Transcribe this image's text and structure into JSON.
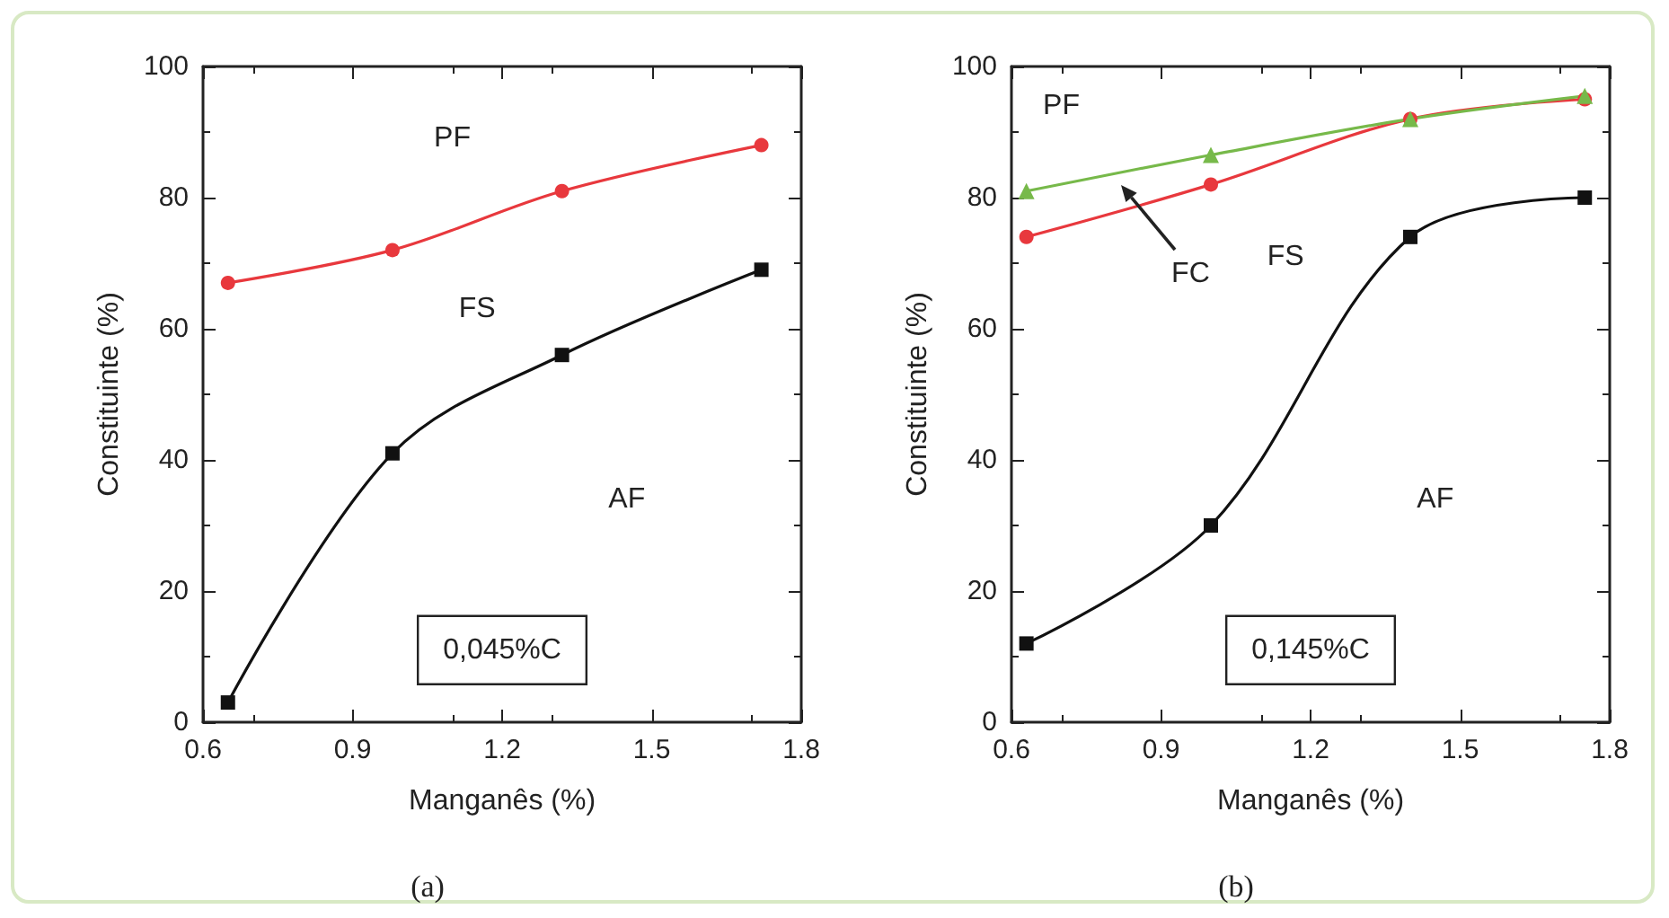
{
  "chart_data": [
    {
      "type": "line",
      "title": "(a)",
      "xlabel": "Manganês (%)",
      "ylabel": "Constituinte (%)",
      "xlim": [
        0.6,
        1.8
      ],
      "xticks": [
        0.6,
        0.9,
        1.2,
        1.5,
        1.8
      ],
      "ylim": [
        0,
        100
      ],
      "yticks": [
        0,
        20,
        40,
        60,
        80,
        100
      ],
      "x": [
        0.65,
        0.98,
        1.32,
        1.72
      ],
      "series": [
        {
          "color": "#111111",
          "marker": "square",
          "values": [
            3,
            41,
            56,
            69
          ]
        },
        {
          "color": "#e8383d",
          "marker": "circle",
          "values": [
            67,
            72,
            81,
            88
          ]
        }
      ],
      "annotations": [
        "PF",
        "FS",
        "AF",
        "0,045%C"
      ]
    },
    {
      "type": "line",
      "title": "(b)",
      "xlabel": "Manganês (%)",
      "ylabel": "Constituinte (%)",
      "xlim": [
        0.6,
        1.8
      ],
      "xticks": [
        0.6,
        0.9,
        1.2,
        1.5,
        1.8
      ],
      "ylim": [
        0,
        100
      ],
      "yticks": [
        0,
        20,
        40,
        60,
        80,
        100
      ],
      "x": [
        0.63,
        1.0,
        1.4,
        1.75
      ],
      "series": [
        {
          "color": "#111111",
          "marker": "square",
          "values": [
            12,
            30,
            74,
            80
          ]
        },
        {
          "color": "#e8383d",
          "marker": "circle",
          "values": [
            74,
            82,
            92,
            95
          ]
        },
        {
          "color": "#77b94a",
          "marker": "triangle",
          "values": [
            81,
            86.5,
            92,
            95.5
          ]
        }
      ],
      "annotations": [
        "PF",
        "FS",
        "FC",
        "AF",
        "0,145%C"
      ]
    }
  ]
}
